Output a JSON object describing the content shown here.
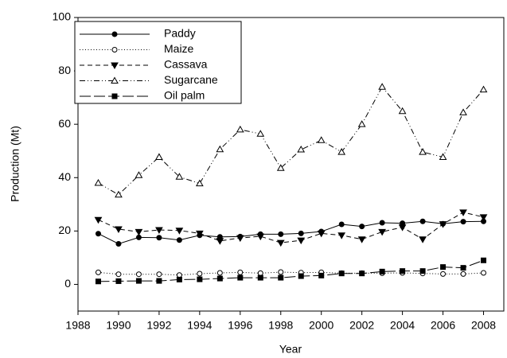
{
  "chart_data": {
    "type": "line",
    "x_label": "Year",
    "y_label": "Production (Mt)",
    "x": [
      1989,
      1990,
      1991,
      1992,
      1993,
      1994,
      1995,
      1996,
      1997,
      1998,
      1999,
      2000,
      2001,
      2002,
      2003,
      2004,
      2005,
      2006,
      2007,
      2008
    ],
    "series": [
      {
        "name": "Paddy",
        "color": "#000000",
        "style": "solid",
        "marker": "circle-filled",
        "values": [
          19,
          15.2,
          17.6,
          17.5,
          16.6,
          18.4,
          17.8,
          17.9,
          18.8,
          18.8,
          19.1,
          19.8,
          22.5,
          21.7,
          23.1,
          22.9,
          23.6,
          22.7,
          23.5,
          23.6
        ]
      },
      {
        "name": "Maize",
        "color": "#000000",
        "style": "dotted",
        "marker": "circle-open",
        "values": [
          4.5,
          3.8,
          3.8,
          3.8,
          3.5,
          4,
          4.3,
          4.5,
          4.2,
          4.6,
          4.4,
          4.5,
          4.2,
          4.2,
          4.2,
          4.3,
          4.1,
          3.9,
          3.9,
          4.3
        ]
      },
      {
        "name": "Cassava",
        "color": "#000000",
        "style": "dashed",
        "marker": "triangle-down-filled",
        "values": [
          24.2,
          20.7,
          19.7,
          20.4,
          20.2,
          19.1,
          16.3,
          17.4,
          18,
          15.6,
          16.5,
          19.1,
          18.4,
          16.9,
          19.7,
          21.4,
          16.9,
          22.6,
          27,
          25.2
        ]
      },
      {
        "name": "Sugarcane",
        "color": "#000000",
        "style": "dash-dot",
        "marker": "triangle-up-open",
        "values": [
          38,
          33.6,
          40.9,
          47.7,
          40.3,
          37.8,
          50.6,
          58,
          56.4,
          43.6,
          50.5,
          54,
          49.6,
          60,
          74,
          64.9,
          49.6,
          47.7,
          64.4,
          73
        ]
      },
      {
        "name": "Oil palm",
        "color": "#000000",
        "style": "long-dash",
        "marker": "square-filled",
        "values": [
          1.1,
          1.2,
          1.3,
          1.3,
          1.8,
          1.9,
          2.2,
          2.5,
          2.5,
          2.5,
          3.1,
          3.3,
          4.1,
          4.1,
          4.8,
          5,
          5,
          6.5,
          6.2,
          9
        ]
      }
    ],
    "xlim": [
      1988,
      2009
    ],
    "xticks": [
      1988,
      1990,
      1992,
      1994,
      1996,
      1998,
      2000,
      2002,
      2004,
      2006,
      2008
    ],
    "ylim": [
      -10,
      100
    ],
    "yticks": [
      0,
      20,
      40,
      60,
      80,
      100
    ],
    "legend": "upper-left",
    "grid": false
  }
}
